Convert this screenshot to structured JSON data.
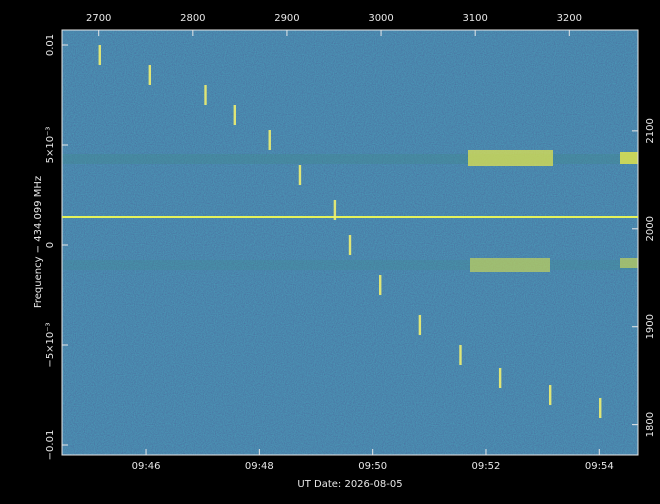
{
  "chart_data": {
    "type": "spectrogram",
    "x_label": "UT Date: 2026-08-05",
    "y_label": "Frequency − 434.099 MHz",
    "xlim": [
      "09:44:31",
      "09:54:41"
    ],
    "xticks": [
      "09:46",
      "09:48",
      "09:50",
      "09:52",
      "09:54"
    ],
    "x2lim": [
      2661,
      3273
    ],
    "x2ticks": [
      2700,
      2800,
      2900,
      3000,
      3100,
      3200
    ],
    "ylim": [
      -0.0105,
      0.01075
    ],
    "yticks": [
      {
        "value": 0.01,
        "label": "0.01"
      },
      {
        "value": 0.005,
        "label": "5×10⁻³"
      },
      {
        "value": 0,
        "label": "0"
      },
      {
        "value": -0.005,
        "label": "−5×10⁻³"
      },
      {
        "value": -0.01,
        "label": "−0.01"
      }
    ],
    "y2lim": [
      1769,
      2203
    ],
    "y2ticks": [
      1800,
      1900,
      2000,
      2100
    ],
    "carrier": {
      "y": 0.0014,
      "color": "#e6f25a"
    },
    "trace": {
      "color": "#f0f070",
      "x": [
        "09:45:11",
        "09:46:04",
        "09:47:03",
        "09:47:34",
        "09:48:11",
        "09:48:43",
        "09:49:20",
        "09:49:36",
        "09:50:08",
        "09:50:50",
        "09:51:33",
        "09:52:15",
        "09:53:08",
        "09:54:01"
      ],
      "y": [
        0.0095,
        0.0085,
        0.0075,
        0.0065,
        0.00525,
        0.0035,
        0.00175,
        0,
        -0.002,
        -0.004,
        -0.0055,
        -0.00665,
        -0.0075,
        -0.00815
      ]
    }
  }
}
